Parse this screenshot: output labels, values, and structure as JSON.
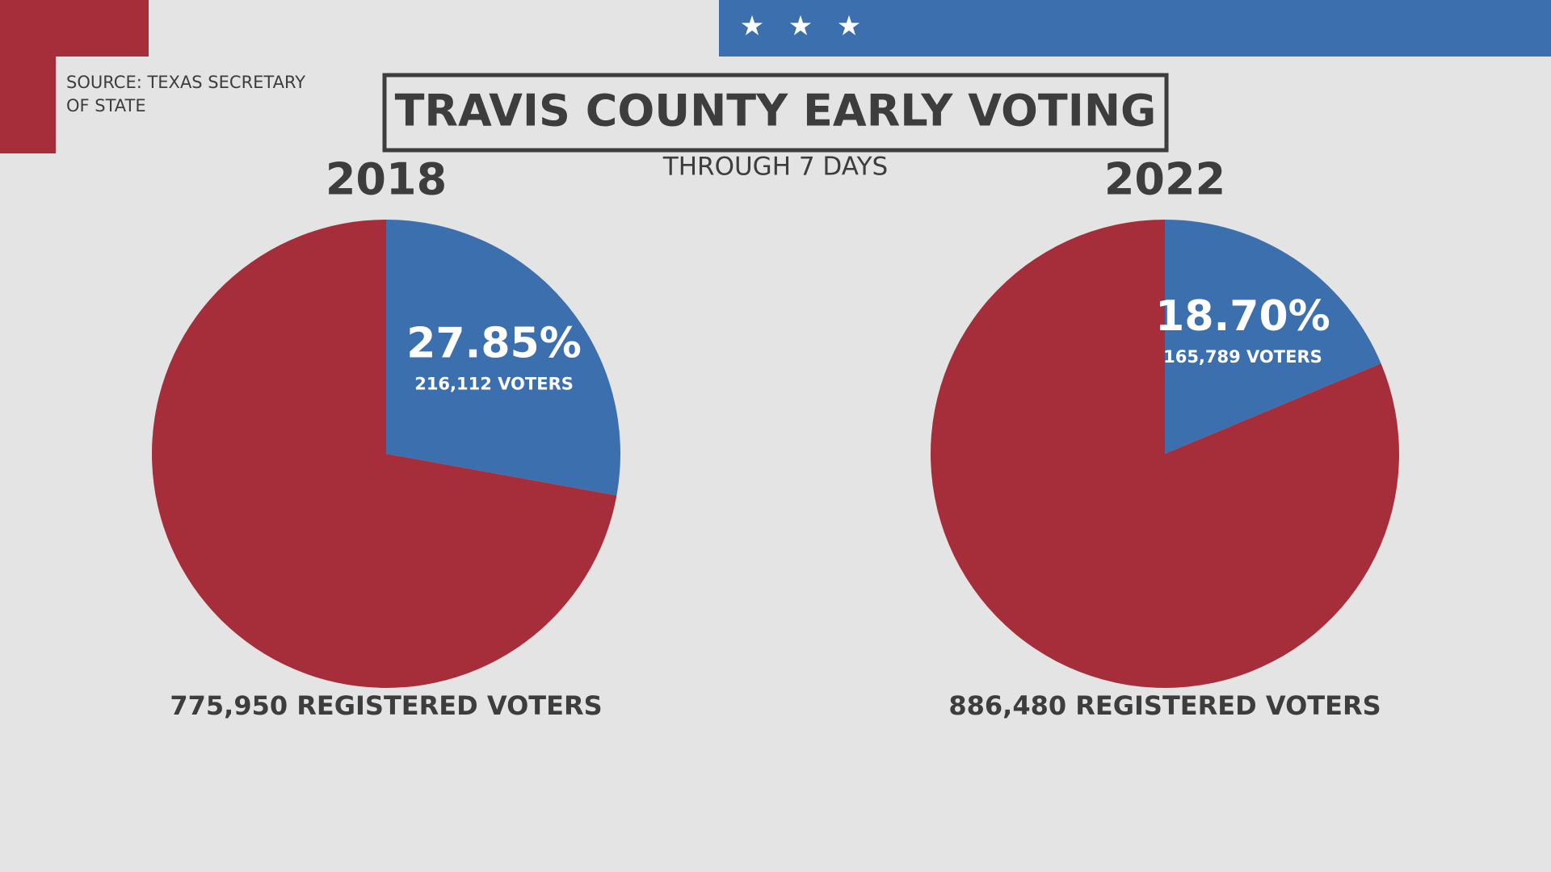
{
  "title": "TRAVIS COUNTY EARLY VOTING",
  "subtitle": "THROUGH 7 DAYS",
  "source": [
    "SOURCE: TEXAS SECRETARY",
    "OF STATE"
  ],
  "chart_data": [
    {
      "type": "pie",
      "title": "2018",
      "values": [
        27.85,
        72.15
      ],
      "value_labels": [
        "27.85%",
        null
      ],
      "colors": [
        "#3c6fae",
        "#a62d3a"
      ],
      "annotations": [
        "216,112 VOTERS",
        null
      ],
      "footnote": "775,950 REGISTERED VOTERS"
    },
    {
      "type": "pie",
      "title": "2022",
      "values": [
        18.7,
        81.3
      ],
      "value_labels": [
        "18.70%",
        null
      ],
      "colors": [
        "#3c6fae",
        "#a62d3a"
      ],
      "annotations": [
        "165,789 VOTERS",
        null
      ],
      "footnote": "886,480 REGISTERED VOTERS"
    }
  ]
}
